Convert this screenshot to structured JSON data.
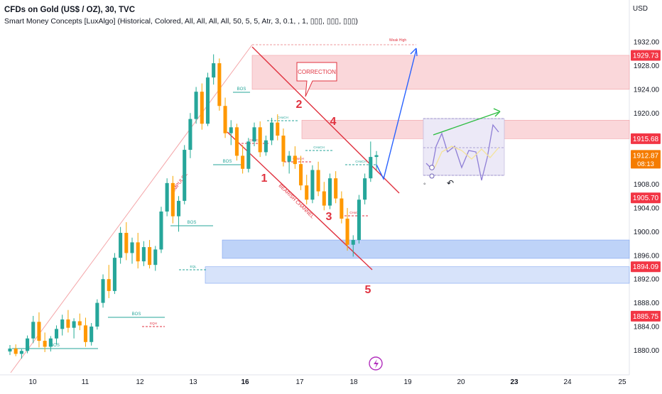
{
  "header": {
    "title": "CFDs on Gold (US$ / OZ), 30, TVC",
    "indicator": "Smart Money Concepts [LuxAlgo] (Historical, Colored, All, All, All, All, 50, 5, 5, Atr, 3, 0.1, , 1, ▯▯▯, ▯▯▯, ▯▯▯)"
  },
  "currency": "USD",
  "chart_data": {
    "type": "candlestick",
    "x_ticks": [
      "10",
      "11",
      "12",
      "13",
      "16",
      "17",
      "18",
      "19",
      "20",
      "23",
      "24",
      "25"
    ],
    "y_ticks": [
      1932.0,
      1928.0,
      1924.0,
      1920.0,
      1908.0,
      1904.0,
      1900.0,
      1896.0,
      1892.0,
      1888.0,
      1884.0,
      1880.0
    ],
    "price_labels": [
      {
        "text": "1929.73",
        "color": "#f23645"
      },
      {
        "text": "1915.68",
        "color": "#f23645"
      },
      {
        "text": "1912.87",
        "sub": "08:13",
        "color": "#f57c00"
      },
      {
        "text": "1905.70",
        "color": "#f23645"
      },
      {
        "text": "1894.09",
        "color": "#f23645"
      },
      {
        "text": "1885.75",
        "color": "#f23645"
      }
    ],
    "annotations": {
      "wave_labels": [
        "1",
        "2",
        "3",
        "4",
        "5"
      ],
      "correction": "CORRECTION",
      "impulse": "IMPULSE",
      "bearish_channel": "BEARISH CHANNEL",
      "weak_high": "Weak High",
      "bos": "BOS",
      "choch": "CHoCH",
      "eqh": "EQH",
      "eql": "EQL"
    },
    "zones": [
      {
        "name": "supply-upper",
        "from": 1924.0,
        "to": 1929.73,
        "color": "#f8c9cd"
      },
      {
        "name": "supply-lower",
        "from": 1915.68,
        "to": 1918.8,
        "color": "#f8c9cd"
      },
      {
        "name": "demand-upper",
        "from": 1895.5,
        "to": 1898.6,
        "color": "#a8c4f5"
      },
      {
        "name": "demand-lower",
        "from": 1891.3,
        "to": 1894.09,
        "color": "#c9daf8"
      }
    ],
    "candles": [
      {
        "o": 1879.8,
        "h": 1880.9,
        "l": 1879.2,
        "c": 1880.3
      },
      {
        "o": 1880.3,
        "h": 1881.0,
        "l": 1879.0,
        "c": 1879.4
      },
      {
        "o": 1879.4,
        "h": 1880.2,
        "l": 1878.6,
        "c": 1879.9
      },
      {
        "o": 1879.9,
        "h": 1882.5,
        "l": 1879.5,
        "c": 1882.0
      },
      {
        "o": 1882.0,
        "h": 1885.8,
        "l": 1881.2,
        "c": 1884.8
      },
      {
        "o": 1884.8,
        "h": 1886.4,
        "l": 1880.5,
        "c": 1881.6
      },
      {
        "o": 1881.6,
        "h": 1883.0,
        "l": 1879.7,
        "c": 1880.6
      },
      {
        "o": 1880.6,
        "h": 1882.4,
        "l": 1879.8,
        "c": 1882.0
      },
      {
        "o": 1882.0,
        "h": 1884.2,
        "l": 1881.0,
        "c": 1883.6
      },
      {
        "o": 1883.6,
        "h": 1886.0,
        "l": 1882.5,
        "c": 1885.2
      },
      {
        "o": 1885.2,
        "h": 1886.8,
        "l": 1883.0,
        "c": 1883.8
      },
      {
        "o": 1883.8,
        "h": 1885.4,
        "l": 1882.0,
        "c": 1884.9
      },
      {
        "o": 1884.9,
        "h": 1886.2,
        "l": 1883.4,
        "c": 1884.2
      },
      {
        "o": 1884.2,
        "h": 1885.5,
        "l": 1880.6,
        "c": 1881.4
      },
      {
        "o": 1881.4,
        "h": 1884.6,
        "l": 1880.8,
        "c": 1884.0
      },
      {
        "o": 1884.0,
        "h": 1888.6,
        "l": 1883.5,
        "c": 1888.0
      },
      {
        "o": 1888.0,
        "h": 1892.8,
        "l": 1887.2,
        "c": 1892.0
      },
      {
        "o": 1892.0,
        "h": 1894.4,
        "l": 1888.8,
        "c": 1890.0
      },
      {
        "o": 1890.0,
        "h": 1896.4,
        "l": 1889.5,
        "c": 1895.6
      },
      {
        "o": 1895.6,
        "h": 1900.8,
        "l": 1894.6,
        "c": 1899.8
      },
      {
        "o": 1899.8,
        "h": 1901.6,
        "l": 1895.2,
        "c": 1896.4
      },
      {
        "o": 1896.4,
        "h": 1899.0,
        "l": 1894.6,
        "c": 1898.2
      },
      {
        "o": 1898.2,
        "h": 1899.8,
        "l": 1893.8,
        "c": 1895.0
      },
      {
        "o": 1895.0,
        "h": 1898.4,
        "l": 1894.2,
        "c": 1897.4
      },
      {
        "o": 1897.4,
        "h": 1898.6,
        "l": 1893.8,
        "c": 1894.4
      },
      {
        "o": 1894.4,
        "h": 1897.6,
        "l": 1893.4,
        "c": 1897.0
      },
      {
        "o": 1897.0,
        "h": 1904.2,
        "l": 1896.4,
        "c": 1903.4
      },
      {
        "o": 1903.4,
        "h": 1909.0,
        "l": 1902.6,
        "c": 1908.2
      },
      {
        "o": 1908.2,
        "h": 1909.4,
        "l": 1901.4,
        "c": 1902.6
      },
      {
        "o": 1902.6,
        "h": 1906.0,
        "l": 1900.0,
        "c": 1905.2
      },
      {
        "o": 1905.2,
        "h": 1914.6,
        "l": 1904.6,
        "c": 1913.8
      },
      {
        "o": 1913.8,
        "h": 1920.0,
        "l": 1912.4,
        "c": 1919.0
      },
      {
        "o": 1919.0,
        "h": 1924.4,
        "l": 1918.2,
        "c": 1923.6
      },
      {
        "o": 1923.6,
        "h": 1925.0,
        "l": 1917.2,
        "c": 1918.2
      },
      {
        "o": 1918.2,
        "h": 1926.8,
        "l": 1917.8,
        "c": 1926.0
      },
      {
        "o": 1926.0,
        "h": 1929.9,
        "l": 1924.8,
        "c": 1928.4
      },
      {
        "o": 1928.4,
        "h": 1929.2,
        "l": 1920.4,
        "c": 1921.2
      },
      {
        "o": 1921.2,
        "h": 1922.6,
        "l": 1915.8,
        "c": 1916.6
      },
      {
        "o": 1916.6,
        "h": 1918.8,
        "l": 1914.6,
        "c": 1917.6
      },
      {
        "o": 1917.6,
        "h": 1918.2,
        "l": 1912.0,
        "c": 1912.8
      },
      {
        "o": 1912.8,
        "h": 1914.6,
        "l": 1909.8,
        "c": 1910.6
      },
      {
        "o": 1910.6,
        "h": 1915.8,
        "l": 1910.0,
        "c": 1915.2
      },
      {
        "o": 1915.2,
        "h": 1918.4,
        "l": 1914.4,
        "c": 1917.6
      },
      {
        "o": 1917.6,
        "h": 1918.6,
        "l": 1912.6,
        "c": 1913.4
      },
      {
        "o": 1913.4,
        "h": 1916.2,
        "l": 1912.8,
        "c": 1915.4
      },
      {
        "o": 1915.4,
        "h": 1919.2,
        "l": 1914.6,
        "c": 1918.4
      },
      {
        "o": 1918.4,
        "h": 1919.8,
        "l": 1915.4,
        "c": 1916.2
      },
      {
        "o": 1916.2,
        "h": 1917.4,
        "l": 1911.0,
        "c": 1911.8
      },
      {
        "o": 1911.8,
        "h": 1913.6,
        "l": 1909.8,
        "c": 1912.8
      },
      {
        "o": 1912.8,
        "h": 1914.4,
        "l": 1910.6,
        "c": 1911.4
      },
      {
        "o": 1911.4,
        "h": 1912.8,
        "l": 1907.0,
        "c": 1907.8
      },
      {
        "o": 1907.8,
        "h": 1909.6,
        "l": 1904.6,
        "c": 1905.4
      },
      {
        "o": 1905.4,
        "h": 1911.2,
        "l": 1904.8,
        "c": 1910.4
      },
      {
        "o": 1910.4,
        "h": 1911.8,
        "l": 1906.0,
        "c": 1906.8
      },
      {
        "o": 1906.8,
        "h": 1908.4,
        "l": 1903.6,
        "c": 1904.4
      },
      {
        "o": 1904.4,
        "h": 1909.8,
        "l": 1903.8,
        "c": 1909.0
      },
      {
        "o": 1909.0,
        "h": 1910.2,
        "l": 1904.8,
        "c": 1905.6
      },
      {
        "o": 1905.6,
        "h": 1906.8,
        "l": 1901.4,
        "c": 1902.2
      },
      {
        "o": 1902.2,
        "h": 1904.0,
        "l": 1896.8,
        "c": 1897.8
      },
      {
        "o": 1897.8,
        "h": 1899.4,
        "l": 1895.8,
        "c": 1898.6
      },
      {
        "o": 1898.6,
        "h": 1906.2,
        "l": 1898.0,
        "c": 1905.4
      },
      {
        "o": 1905.4,
        "h": 1909.8,
        "l": 1904.6,
        "c": 1909.0
      },
      {
        "o": 1909.0,
        "h": 1915.2,
        "l": 1908.4,
        "c": 1912.6
      },
      {
        "o": 1912.6,
        "h": 1913.6,
        "l": 1910.4,
        "c": 1912.9
      }
    ],
    "forecast_box": {
      "axis_symbols": [
        "◦",
        "↶"
      ]
    }
  },
  "colors": {
    "up": "#26a69a",
    "down": "#ff9800",
    "wick_up": "#22ab94",
    "wick_down": "#f7a600",
    "red_line": "#e0323f",
    "impulse_line": "#f4a5a8",
    "blue_arrow": "#2962ff",
    "green_arrow": "#2ebd42",
    "axis_text": "#131722"
  }
}
